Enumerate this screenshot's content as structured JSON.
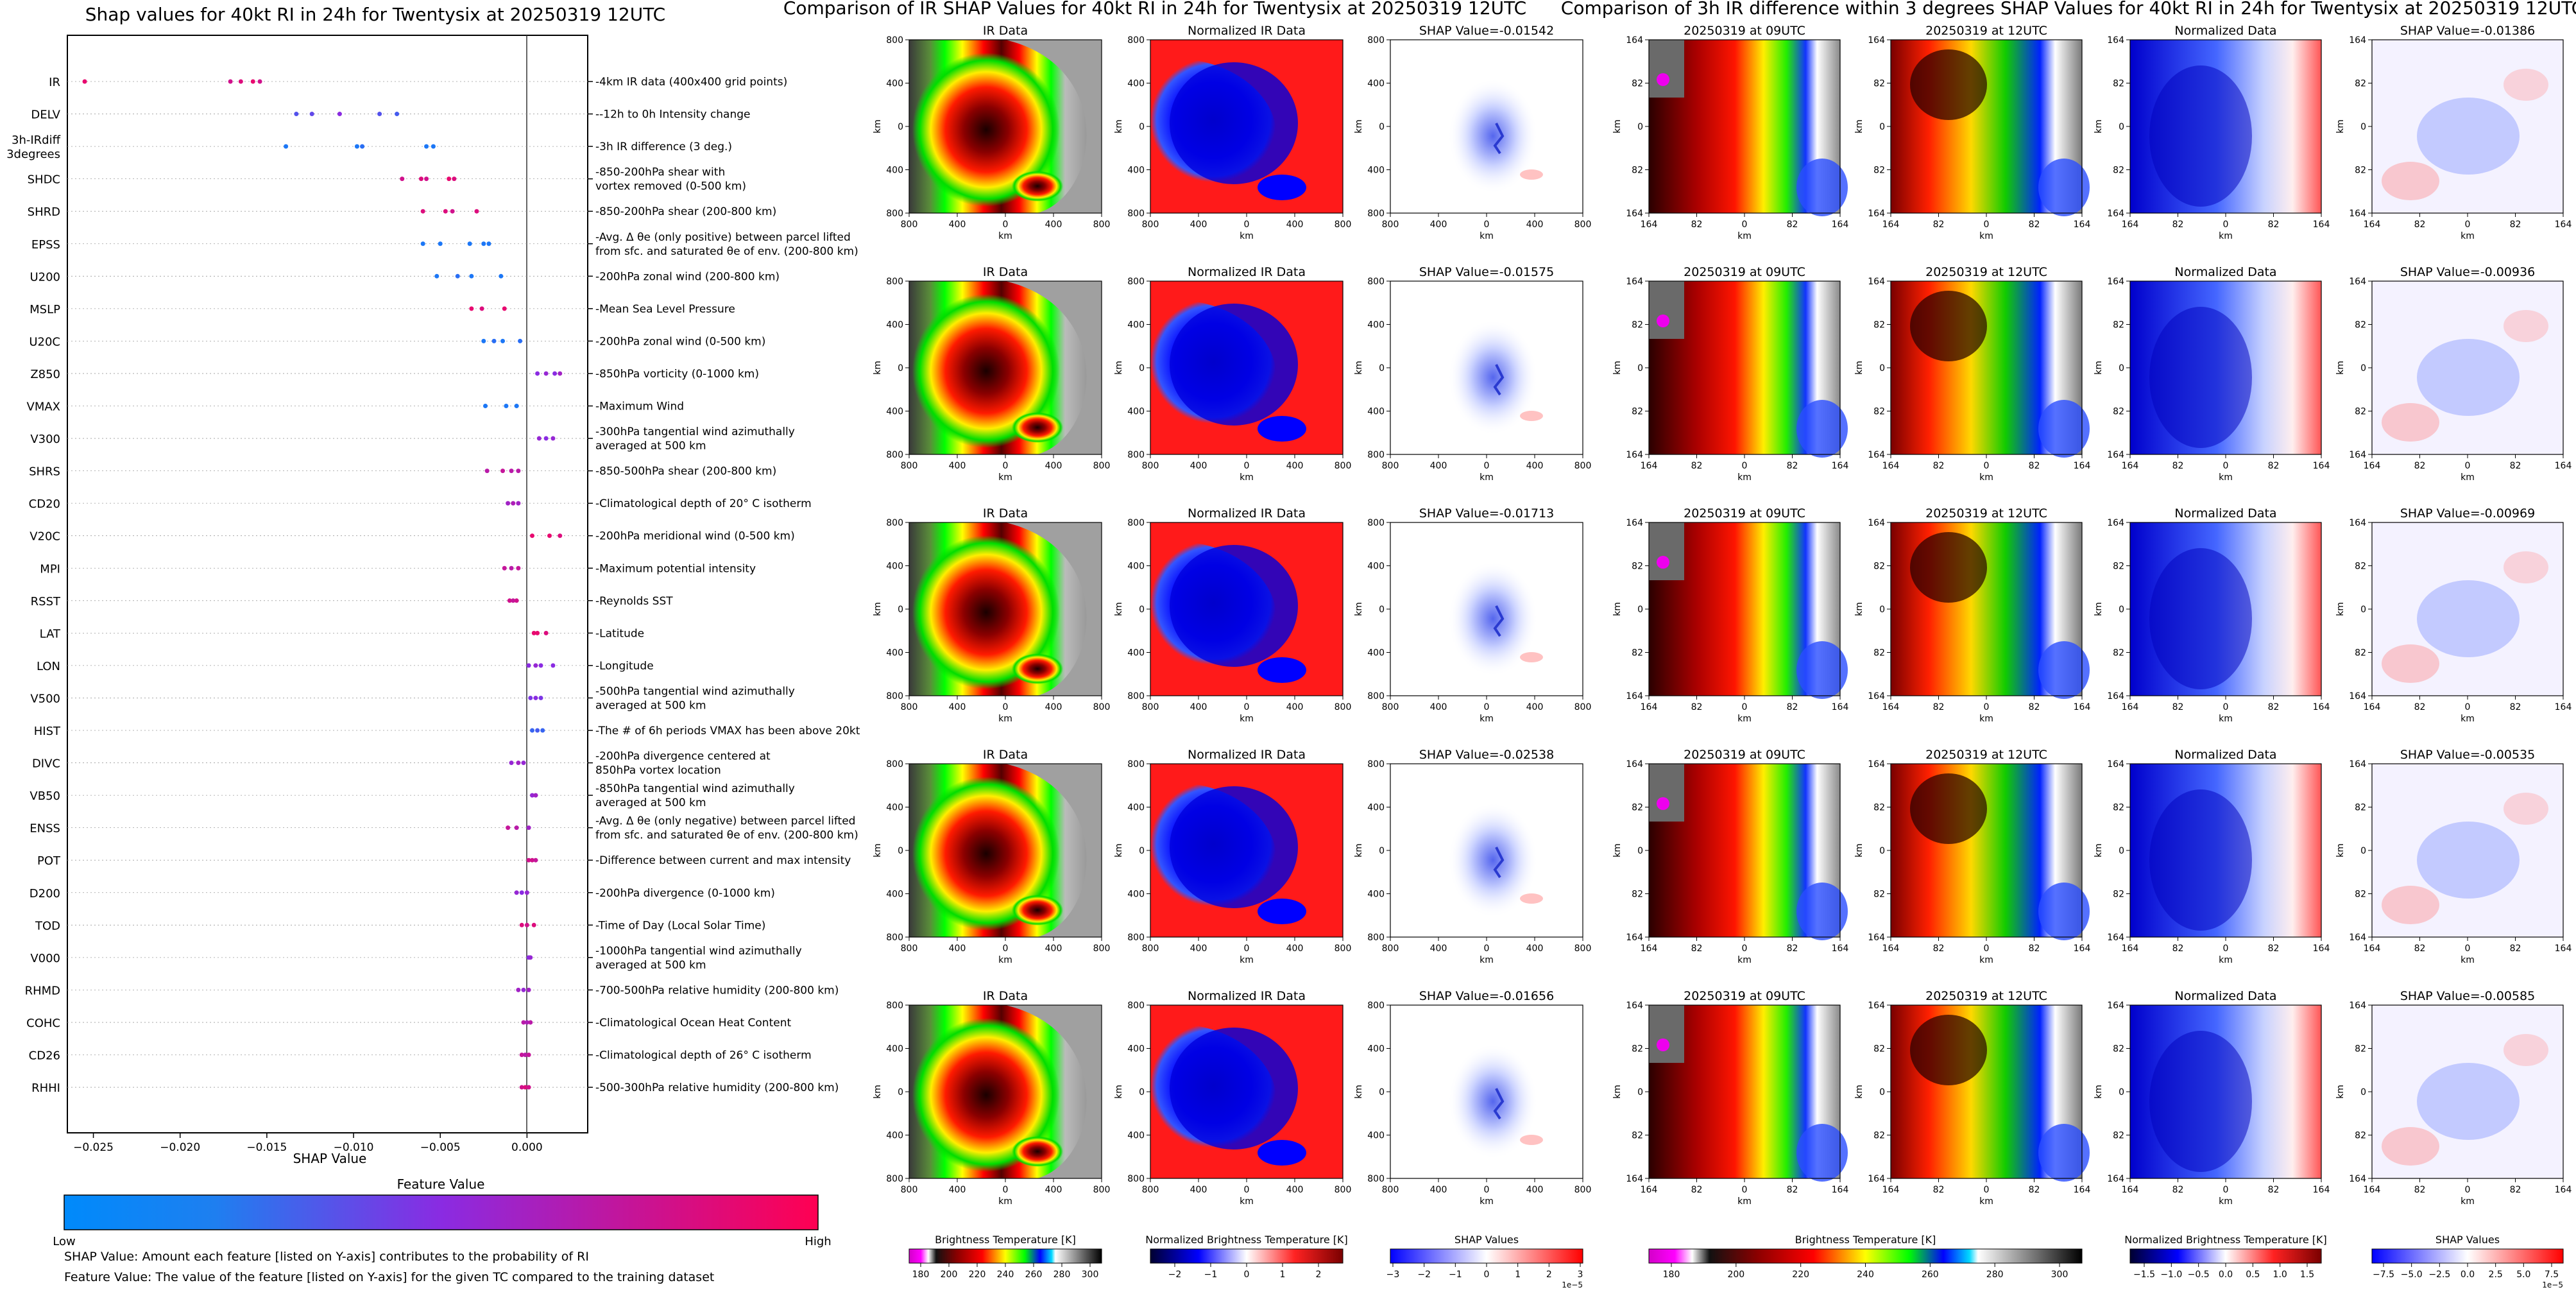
{
  "shap": {
    "title": "Shap values for 40kt RI in 24h for Twentysix at 20250319 12UTC",
    "xlabel": "SHAP Value",
    "xlim": [
      -0.0265,
      0.0035
    ],
    "ticks": [
      -0.025,
      -0.02,
      -0.015,
      -0.01,
      -0.005,
      0.0
    ],
    "tick_labels": [
      "−0.025",
      "−0.020",
      "−0.015",
      "−0.010",
      "−0.005",
      "0.000"
    ],
    "colorbar_title": "Feature Value",
    "colorbar_low": "Low",
    "colorbar_high": "High",
    "low_color": "#008afb",
    "high_color": "#ff0052",
    "mid_color": "#8a2be2",
    "note1": "SHAP Value: Amount each feature [listed on Y-axis] contributes to the probability of RI",
    "note2": "Feature Value: The value of the feature [listed on Y-axis] for the given TC compared to the training dataset",
    "features": [
      {
        "name": "IR",
        "desc": [
          "4km IR data (400x400 grid points)"
        ],
        "values": [
          -0.0255,
          -0.0171,
          -0.0165,
          -0.0158,
          -0.0154
        ],
        "colors": [
          0.9,
          0.8,
          0.85,
          0.9,
          0.8
        ]
      },
      {
        "name": "DELV",
        "desc": [
          "-12h to 0h Intensity change"
        ],
        "values": [
          -0.0133,
          -0.0124,
          -0.0108,
          -0.0085,
          -0.0075
        ],
        "colors": [
          0.3,
          0.35,
          0.5,
          0.3,
          0.25
        ]
      },
      {
        "name": "3h-IRdiff|3degrees",
        "desc": [
          "3h IR difference (3 deg.)"
        ],
        "values": [
          -0.0139,
          -0.0098,
          -0.0095,
          -0.0058,
          -0.0054
        ],
        "colors": [
          0.1,
          0.1,
          0.15,
          0.1,
          0.1
        ]
      },
      {
        "name": "SHDC",
        "desc": [
          "850-200hPa shear with",
          "vortex removed (0-500 km)"
        ],
        "values": [
          -0.0072,
          -0.0061,
          -0.0058,
          -0.0045,
          -0.0042
        ],
        "colors": [
          0.8,
          0.85,
          0.8,
          0.9,
          0.85
        ]
      },
      {
        "name": "SHRD",
        "desc": [
          "850-200hPa shear (200-800 km)"
        ],
        "values": [
          -0.006,
          -0.0047,
          -0.0043,
          -0.0029
        ],
        "colors": [
          0.85,
          0.85,
          0.8,
          0.85
        ]
      },
      {
        "name": "EPSS",
        "desc": [
          "Avg. Δ θe (only positive) between parcel lifted",
          "from sfc. and saturated θe of env. (200-800 km)"
        ],
        "values": [
          -0.006,
          -0.005,
          -0.0033,
          -0.0025,
          -0.0022
        ],
        "colors": [
          0.1,
          0.1,
          0.1,
          0.1,
          0.1
        ]
      },
      {
        "name": "U200",
        "desc": [
          "200hPa zonal wind (200-800 km)"
        ],
        "values": [
          -0.0052,
          -0.004,
          -0.0032,
          -0.0015
        ],
        "colors": [
          0.1,
          0.15,
          0.1,
          0.1
        ]
      },
      {
        "name": "MSLP",
        "desc": [
          "Mean Sea Level Pressure"
        ],
        "values": [
          -0.0032,
          -0.0026,
          -0.0013
        ],
        "colors": [
          0.9,
          0.85,
          0.9
        ]
      },
      {
        "name": "U20C",
        "desc": [
          "200hPa zonal wind (0-500 km)"
        ],
        "values": [
          -0.0025,
          -0.0019,
          -0.0014,
          -0.0004
        ],
        "colors": [
          0.1,
          0.15,
          0.1,
          0.15
        ]
      },
      {
        "name": "Z850",
        "desc": [
          "850hPa vorticity (0-1000 km)"
        ],
        "values": [
          0.0006,
          0.0011,
          0.0016,
          0.0019
        ],
        "colors": [
          0.5,
          0.55,
          0.5,
          0.6
        ]
      },
      {
        "name": "VMAX",
        "desc": [
          "Maximum Wind"
        ],
        "values": [
          -0.0024,
          -0.0012,
          -0.0006
        ],
        "colors": [
          0.1,
          0.1,
          0.1
        ]
      },
      {
        "name": "V300",
        "desc": [
          "300hPa tangential wind azimuthally",
          "averaged at 500 km"
        ],
        "values": [
          0.0007,
          0.0011,
          0.0015
        ],
        "colors": [
          0.55,
          0.5,
          0.55
        ]
      },
      {
        "name": "SHRS",
        "desc": [
          "850-500hPa shear (200-800 km)"
        ],
        "values": [
          -0.0023,
          -0.0014,
          -0.0009,
          -0.0005
        ],
        "colors": [
          0.7,
          0.75,
          0.7,
          0.7
        ]
      },
      {
        "name": "CD20",
        "desc": [
          "Climatological depth of 20° C isotherm"
        ],
        "values": [
          -0.0011,
          -0.0008,
          -0.0005
        ],
        "colors": [
          0.6,
          0.65,
          0.6
        ]
      },
      {
        "name": "V20C",
        "desc": [
          "200hPa meridional wind (0-500 km)"
        ],
        "values": [
          0.0003,
          0.0013,
          0.0019
        ],
        "colors": [
          0.9,
          0.9,
          0.85
        ]
      },
      {
        "name": "MPI",
        "desc": [
          "Maximum potential intensity"
        ],
        "values": [
          -0.0013,
          -0.0009,
          -0.0005
        ],
        "colors": [
          0.75,
          0.7,
          0.75
        ]
      },
      {
        "name": "RSST",
        "desc": [
          "Reynolds SST"
        ],
        "values": [
          -0.001,
          -0.0008,
          -0.0006
        ],
        "colors": [
          0.8,
          0.75,
          0.8
        ]
      },
      {
        "name": "LAT",
        "desc": [
          "Latitude"
        ],
        "values": [
          0.0004,
          0.0006,
          0.0011
        ],
        "colors": [
          0.9,
          0.9,
          0.85
        ]
      },
      {
        "name": "LON",
        "desc": [
          "Longitude"
        ],
        "values": [
          0.0001,
          0.0005,
          0.0008,
          0.0015
        ],
        "colors": [
          0.5,
          0.55,
          0.5,
          0.5
        ]
      },
      {
        "name": "V500",
        "desc": [
          "500hPa tangential wind azimuthally",
          "averaged at 500 km"
        ],
        "values": [
          0.0002,
          0.0005,
          0.0008
        ],
        "colors": [
          0.45,
          0.5,
          0.45
        ]
      },
      {
        "name": "HIST",
        "desc": [
          "The # of 6h periods VMAX has been above 20kt"
        ],
        "values": [
          0.0003,
          0.0006,
          0.0009
        ],
        "colors": [
          0.2,
          0.25,
          0.2
        ]
      },
      {
        "name": "DIVC",
        "desc": [
          "200hPa divergence centered at",
          "850hPa vortex location"
        ],
        "values": [
          -0.0009,
          -0.0005,
          -0.0002
        ],
        "colors": [
          0.55,
          0.6,
          0.55
        ]
      },
      {
        "name": "VB50",
        "desc": [
          "850hPa tangential wind azimuthally",
          "averaged at 500 km"
        ],
        "values": [
          0.0003,
          0.0005
        ],
        "colors": [
          0.55,
          0.6
        ]
      },
      {
        "name": "ENSS",
        "desc": [
          "Avg. Δ θe (only negative) between parcel lifted",
          "from sfc. and saturated θe of env. (200-800 km)"
        ],
        "values": [
          -0.0011,
          -0.0006,
          0.0001
        ],
        "colors": [
          0.75,
          0.7,
          0.6
        ]
      },
      {
        "name": "POT",
        "desc": [
          "Difference between current and max intensity"
        ],
        "values": [
          0.0001,
          0.0003,
          0.0005
        ],
        "colors": [
          0.8,
          0.8,
          0.75
        ]
      },
      {
        "name": "D200",
        "desc": [
          "200hPa divergence (0-1000 km)"
        ],
        "values": [
          -0.0006,
          -0.0003,
          0.0
        ],
        "colors": [
          0.55,
          0.5,
          0.55
        ]
      },
      {
        "name": "TOD",
        "desc": [
          "Time of Day (Local Solar Time)"
        ],
        "values": [
          -0.0003,
          0.0,
          0.0004
        ],
        "colors": [
          0.85,
          0.8,
          0.85
        ]
      },
      {
        "name": "V000",
        "desc": [
          "1000hPa tangential wind azimuthally",
          "averaged at 500 km"
        ],
        "values": [
          0.0001,
          0.0002
        ],
        "colors": [
          0.5,
          0.55
        ]
      },
      {
        "name": "RHMD",
        "desc": [
          "700-500hPa relative humidity (200-800 km)"
        ],
        "values": [
          -0.0005,
          -0.0002,
          0.0001
        ],
        "colors": [
          0.6,
          0.55,
          0.6
        ]
      },
      {
        "name": "COHC",
        "desc": [
          "Climatological Ocean Heat Content"
        ],
        "values": [
          -0.0002,
          0.0,
          0.0002
        ],
        "colors": [
          0.7,
          0.65,
          0.7
        ]
      },
      {
        "name": "CD26",
        "desc": [
          "Climatological depth of 26° C isotherm"
        ],
        "values": [
          -0.0003,
          -0.0001,
          0.0001
        ],
        "colors": [
          0.75,
          0.7,
          0.75
        ]
      },
      {
        "name": "RHHI",
        "desc": [
          "500-300hPa relative humidity (200-800 km)"
        ],
        "values": [
          -0.0003,
          -0.0001,
          0.0001
        ],
        "colors": [
          0.8,
          0.85,
          0.8
        ]
      }
    ]
  },
  "ir_panel": {
    "title": "Comparison of IR SHAP Values for 40kt RI in 24h for Twentysix at 20250319 12UTC",
    "col_titles": [
      "IR Data",
      "Normalized IR Data"
    ],
    "shap_titles": [
      "SHAP Value=-0.01542",
      "SHAP Value=-0.01575",
      "SHAP Value=-0.01713",
      "SHAP Value=-0.02538",
      "SHAP Value=-0.01656"
    ],
    "axis_label": "km",
    "y_ticks": [
      "800",
      "400",
      "0",
      "400",
      "800"
    ],
    "x_ticks": [
      "800",
      "400",
      "0",
      "400",
      "800"
    ],
    "colorbars": [
      {
        "label": "Brightness Temperature [K]",
        "ticks": [
          "180",
          "200",
          "220",
          "240",
          "260",
          "280",
          "300"
        ],
        "scale": ""
      },
      {
        "label": "Normalized Brightness Temperature [K]",
        "ticks": [
          "−2",
          "−1",
          "0",
          "1",
          "2"
        ],
        "scale": ""
      },
      {
        "label": "SHAP Values",
        "ticks": [
          "−3",
          "−2",
          "−1",
          "0",
          "1",
          "2",
          "3"
        ],
        "scale": "1e−5"
      }
    ]
  },
  "diff_panel": {
    "title": "Comparison of 3h IR difference within 3 degrees SHAP Values for 40kt RI in 24h for Twentysix at 20250319 12UTC",
    "col_titles": [
      "20250319 at 09UTC",
      "20250319 at 12UTC",
      "Normalized Data"
    ],
    "shap_titles": [
      "SHAP Value=-0.01386",
      "SHAP Value=-0.00936",
      "SHAP Value=-0.00969",
      "SHAP Value=-0.00535",
      "SHAP Value=-0.00585"
    ],
    "axis_label": "km",
    "y_ticks": [
      "164",
      "82",
      "0",
      "82",
      "164"
    ],
    "x_ticks": [
      "164",
      "82",
      "0",
      "82",
      "164"
    ],
    "colorbars": [
      {
        "label": "Brightness Temperature [K]",
        "ticks": [
          "180",
          "200",
          "220",
          "240",
          "260",
          "280",
          "300"
        ],
        "scale": ""
      },
      {
        "label": "Normalized Brightness Temperature [K]",
        "ticks": [
          "−1.5",
          "−1.0",
          "−0.5",
          "0.0",
          "0.5",
          "1.0",
          "1.5"
        ],
        "scale": ""
      },
      {
        "label": "SHAP Values",
        "ticks": [
          "−7.5",
          "−5.0",
          "−2.5",
          "0.0",
          "2.5",
          "5.0",
          "7.5"
        ],
        "scale": "1e−5"
      }
    ]
  },
  "chart_data": [
    {
      "type": "scatter",
      "title": "Shap values for 40kt RI in 24h for Twentysix at 20250319 12UTC",
      "xlabel": "SHAP Value",
      "ylabel": "",
      "xlim": [
        -0.0265,
        0.0035
      ],
      "categories": [
        "IR",
        "DELV",
        "3h-IRdiff 3degrees",
        "SHDC",
        "SHRD",
        "EPSS",
        "U200",
        "MSLP",
        "U20C",
        "Z850",
        "VMAX",
        "V300",
        "SHRS",
        "CD20",
        "V20C",
        "MPI",
        "RSST",
        "LAT",
        "LON",
        "V500",
        "HIST",
        "DIVC",
        "VB50",
        "ENSS",
        "POT",
        "D200",
        "TOD",
        "V000",
        "RHMD",
        "COHC",
        "CD26",
        "RHHI"
      ]
    },
    {
      "type": "heatmap",
      "title": "Comparison of IR SHAP Values for 40kt RI in 24h for Twentysix at 20250319 12UTC",
      "xlabel": "km",
      "ylabel": "km",
      "shap_values": [
        -0.01542,
        -0.01575,
        -0.01713,
        -0.02538,
        -0.01656
      ]
    },
    {
      "type": "heatmap",
      "title": "Comparison of 3h IR difference within 3 degrees SHAP Values for 40kt RI in 24h for Twentysix at 20250319 12UTC",
      "xlabel": "km",
      "ylabel": "km",
      "shap_values": [
        -0.01386,
        -0.00936,
        -0.00969,
        -0.00535,
        -0.00585
      ]
    }
  ]
}
